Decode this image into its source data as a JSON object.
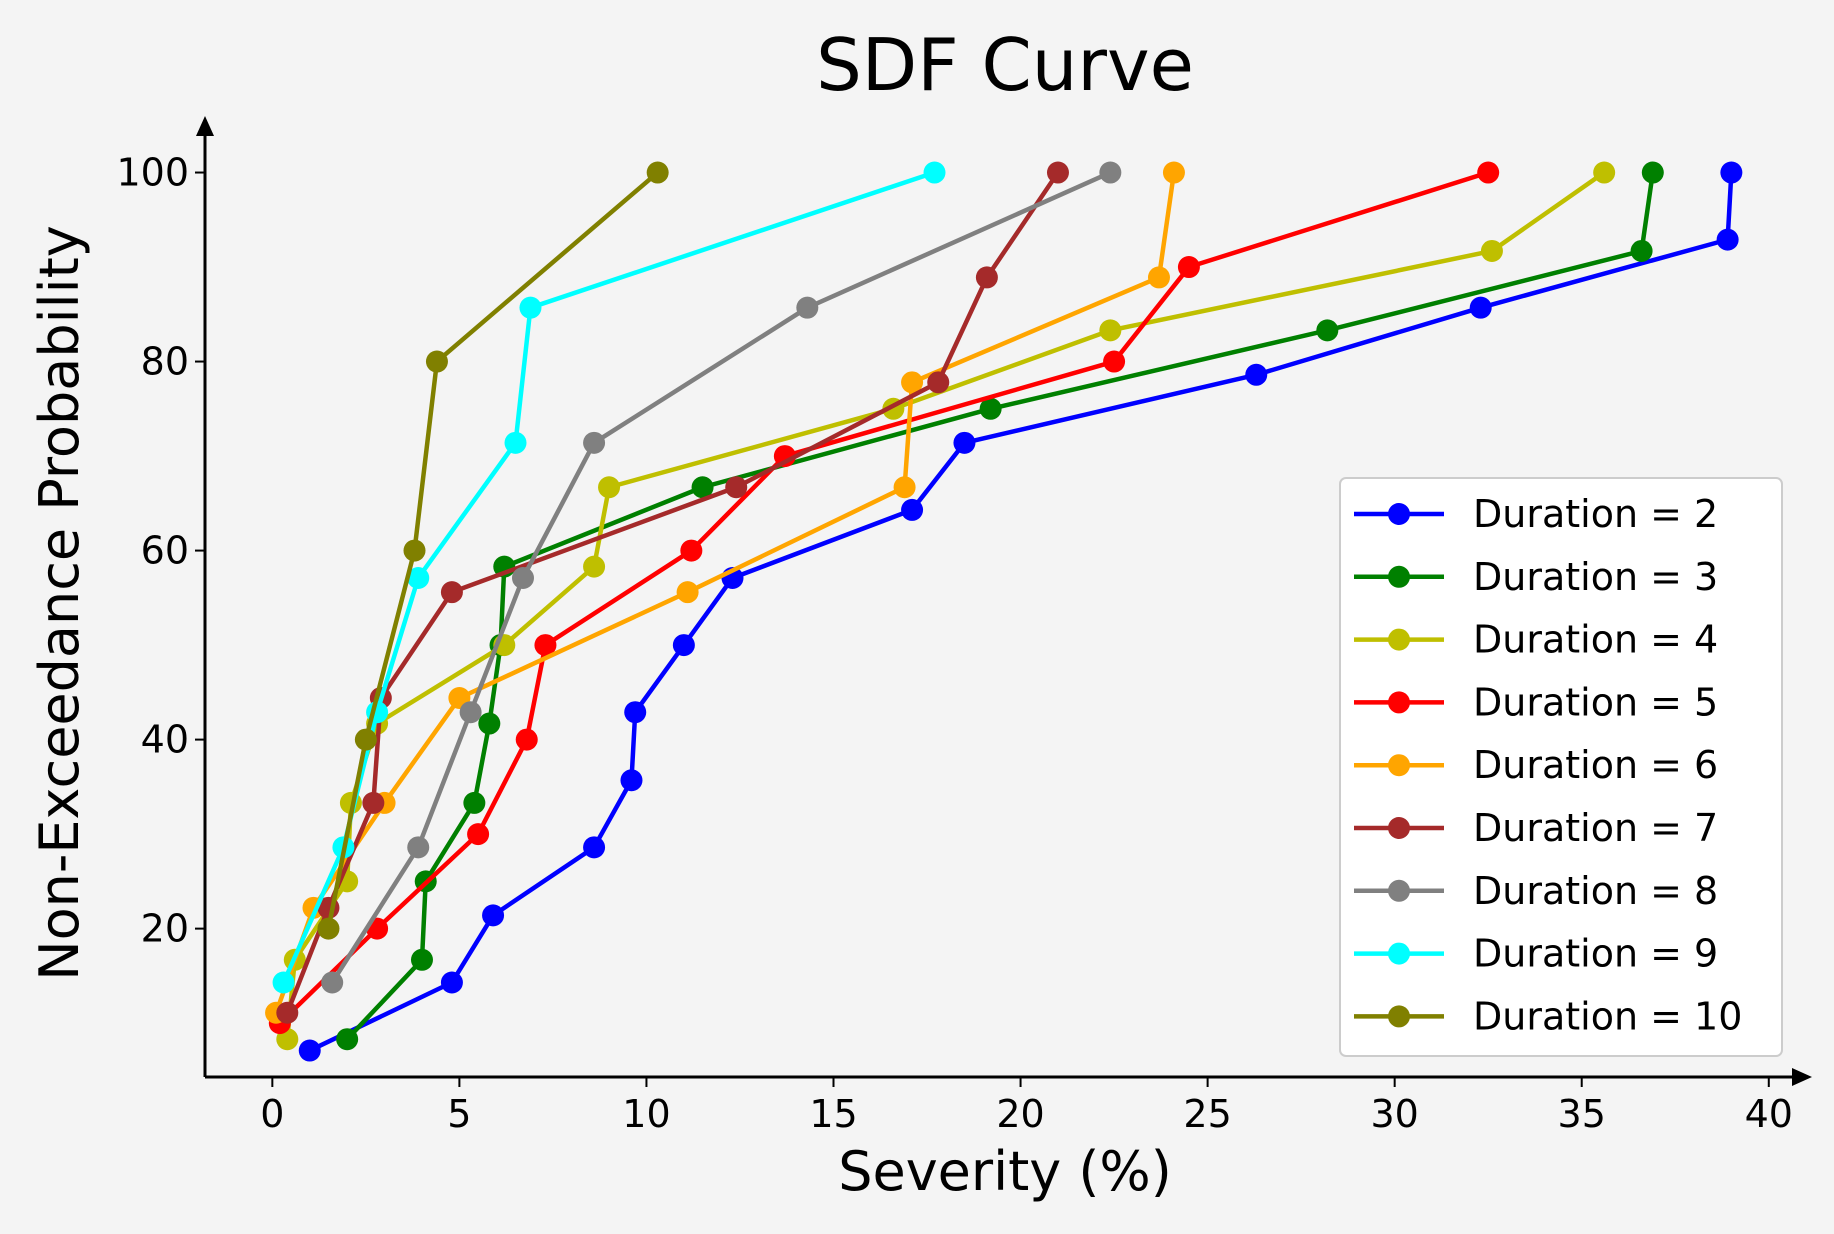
{
  "chart_data": {
    "type": "line",
    "title": "SDF Curve",
    "xlabel": "Severity (%)",
    "ylabel": "Non-Exceedance Probability",
    "xlim": [
      -1.8,
      40.3
    ],
    "ylim": [
      4.3,
      104.5
    ],
    "xticks": [
      0,
      5,
      10,
      15,
      20,
      25,
      30,
      35,
      40
    ],
    "yticks": [
      20,
      40,
      60,
      80,
      100
    ],
    "grid": false,
    "legend_position": "lower right",
    "series": [
      {
        "name": "Duration = 2",
        "color": "#0000ff",
        "x": [
          1.0,
          4.8,
          5.9,
          8.6,
          9.6,
          9.7,
          11.0,
          12.3,
          17.1,
          18.5,
          26.3,
          32.3,
          38.9,
          39.0
        ],
        "y": [
          7.1,
          14.3,
          21.4,
          28.6,
          35.7,
          42.9,
          50.0,
          57.1,
          64.3,
          71.4,
          78.6,
          85.7,
          92.9,
          100
        ]
      },
      {
        "name": "Duration = 3",
        "color": "#008000",
        "x": [
          2.0,
          4.0,
          4.1,
          5.4,
          5.8,
          6.1,
          6.2,
          11.5,
          19.2,
          28.2,
          36.6,
          36.9
        ],
        "y": [
          8.3,
          16.7,
          25.0,
          33.3,
          41.7,
          50.0,
          58.3,
          66.7,
          75.0,
          83.3,
          91.7,
          100
        ]
      },
      {
        "name": "Duration = 4",
        "color": "#bfbf00",
        "x": [
          0.4,
          0.6,
          2.0,
          2.1,
          2.8,
          6.2,
          8.6,
          9.0,
          16.6,
          22.4,
          32.6,
          35.6
        ],
        "y": [
          8.3,
          16.7,
          25.0,
          33.3,
          41.7,
          50.0,
          58.3,
          66.7,
          75.0,
          83.3,
          91.7,
          100
        ]
      },
      {
        "name": "Duration = 5",
        "color": "#ff0000",
        "x": [
          0.2,
          2.8,
          5.5,
          6.8,
          7.3,
          11.2,
          13.7,
          22.5,
          24.5,
          32.5
        ],
        "y": [
          10.0,
          20.0,
          30.0,
          40.0,
          50.0,
          60.0,
          70.0,
          80.0,
          90.0,
          100
        ]
      },
      {
        "name": "Duration = 6",
        "color": "#ffa500",
        "x": [
          0.1,
          1.1,
          3.0,
          5.0,
          11.1,
          16.9,
          17.1,
          23.7,
          24.1
        ],
        "y": [
          11.1,
          22.2,
          33.3,
          44.4,
          55.6,
          66.7,
          77.8,
          88.9,
          100
        ]
      },
      {
        "name": "Duration = 7",
        "color": "#a52a2a",
        "x": [
          0.4,
          1.5,
          2.7,
          2.9,
          4.8,
          12.4,
          17.8,
          19.1,
          21.0
        ],
        "y": [
          11.1,
          22.2,
          33.3,
          44.4,
          55.6,
          66.7,
          77.8,
          88.9,
          100
        ]
      },
      {
        "name": "Duration = 8",
        "color": "#808080",
        "x": [
          1.6,
          3.9,
          5.3,
          6.7,
          8.6,
          14.3,
          22.4
        ],
        "y": [
          14.3,
          28.6,
          42.9,
          57.1,
          71.4,
          85.7,
          100
        ]
      },
      {
        "name": "Duration = 9",
        "color": "#00ffff",
        "x": [
          0.3,
          1.9,
          2.8,
          3.9,
          6.5,
          6.9,
          17.7
        ],
        "y": [
          14.3,
          28.6,
          42.9,
          57.1,
          71.4,
          85.7,
          100
        ]
      },
      {
        "name": "Duration = 10",
        "color": "#808000",
        "x": [
          1.5,
          2.5,
          3.8,
          4.4,
          10.3
        ],
        "y": [
          20.0,
          40.0,
          60.0,
          80.0,
          100
        ]
      }
    ]
  }
}
